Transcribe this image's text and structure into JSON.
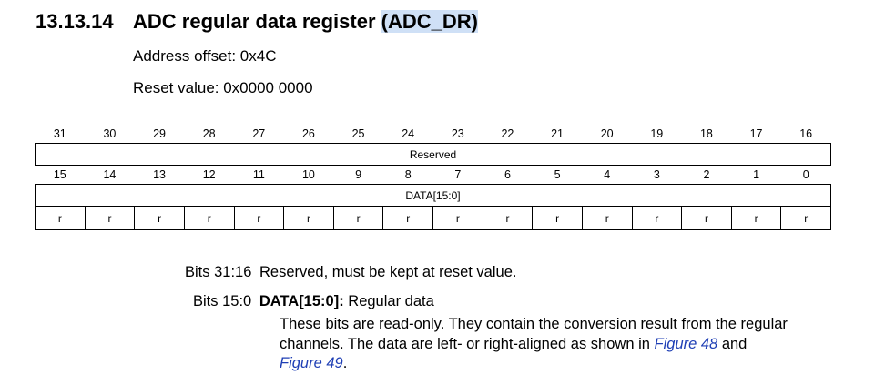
{
  "heading": {
    "number": "13.13.14",
    "title_prefix": "ADC regular data register ",
    "title_highlight": "(ADC_DR)",
    "accent_color": "#cfe0f6"
  },
  "info": {
    "address_offset": "Address offset: 0x4C",
    "reset_value": "Reset value: 0x0000 0000"
  },
  "register": {
    "upper_bits": [
      "31",
      "30",
      "29",
      "28",
      "27",
      "26",
      "25",
      "24",
      "23",
      "22",
      "21",
      "20",
      "19",
      "18",
      "17",
      "16"
    ],
    "upper_field": "Reserved",
    "lower_bits": [
      "15",
      "14",
      "13",
      "12",
      "11",
      "10",
      "9",
      "8",
      "7",
      "6",
      "5",
      "4",
      "3",
      "2",
      "1",
      "0"
    ],
    "lower_field": "DATA[15:0]",
    "access": [
      "r",
      "r",
      "r",
      "r",
      "r",
      "r",
      "r",
      "r",
      "r",
      "r",
      "r",
      "r",
      "r",
      "r",
      "r",
      "r"
    ]
  },
  "bits_desc": [
    {
      "range": "Bits 31:16",
      "text": "Reserved, must be kept at reset value."
    },
    {
      "range": "Bits 15:0",
      "field": "DATA[15:0]:",
      "text": " Regular data",
      "line1": "These bits are read-only. They contain the conversion result from the regular",
      "line2a": "channels. The data are left- or right-aligned as shown in ",
      "link1": "Figure 48",
      "line2b": " and",
      "link2": "Figure 49",
      "line3b": "."
    }
  ],
  "link_color": "#1f3fb5"
}
